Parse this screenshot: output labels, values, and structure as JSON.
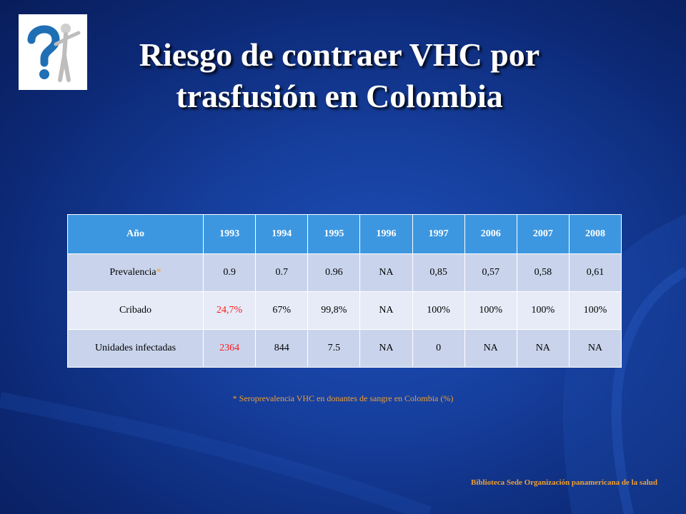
{
  "slide": {
    "title_line1": "Riesgo de contraer VHC por",
    "title_line2": "trasfusión en Colombia",
    "footnote": "* Seroprevalencia VHC en donantes de sangre en Colombia (%)",
    "source": "Biblioteca Sede Organización panamericana de la salud"
  },
  "table": {
    "header": [
      "Año",
      "1993",
      "1994",
      "1995",
      "1996",
      "1997",
      "2006",
      "2007",
      "2008"
    ],
    "rows": [
      {
        "label": "Prevalencia",
        "label_mark": "*",
        "values": [
          "0.9",
          "0.7",
          "0.96",
          "NA",
          "0,85",
          "0,57",
          "0,58",
          "0,61"
        ]
      },
      {
        "label": "Cribado",
        "values": [
          "24,7%",
          "67%",
          "99,8%",
          "NA",
          "100%",
          "100%",
          "100%",
          "100%"
        ]
      },
      {
        "label": "Unidades infectadas",
        "values": [
          "2364",
          "844",
          "7.5",
          "NA",
          "0",
          "NA",
          "NA",
          "NA"
        ]
      }
    ]
  },
  "colors": {
    "background": "#163f9e",
    "header_fill": "#3d97e0",
    "highlight": "#ff1a1a",
    "accent_text": "#f0a030"
  },
  "icons": [
    "question-mark-figure-icon"
  ]
}
